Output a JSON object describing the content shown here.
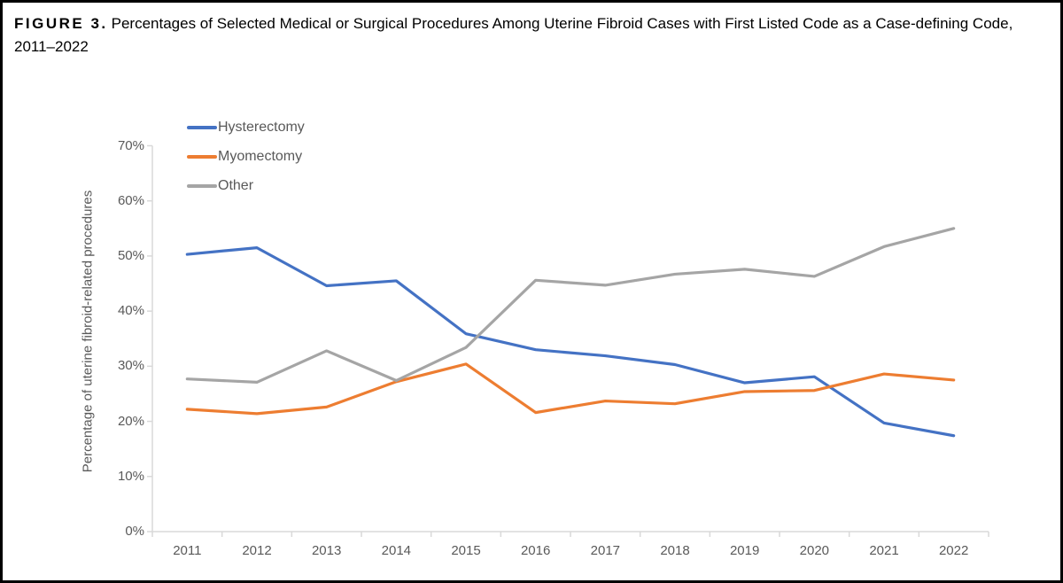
{
  "figure": {
    "label": "FIGURE 3.",
    "title": "Percentages of Selected Medical or Surgical Procedures Among Uterine Fibroid Cases with First Listed Code as a Case-defining Code, 2011–2022"
  },
  "chart_data": {
    "type": "line",
    "categories": [
      "2011",
      "2012",
      "2013",
      "2014",
      "2015",
      "2016",
      "2017",
      "2018",
      "2019",
      "2020",
      "2021",
      "2022"
    ],
    "series": [
      {
        "name": "Hysterectomy",
        "color": "#4472C4",
        "values": [
          50.3,
          51.5,
          44.6,
          45.5,
          35.9,
          33.0,
          31.9,
          30.3,
          27.0,
          28.1,
          19.7,
          17.4
        ]
      },
      {
        "name": "Myomectomy",
        "color": "#ED7D31",
        "values": [
          22.2,
          21.4,
          22.6,
          27.2,
          30.4,
          21.6,
          23.7,
          23.2,
          25.4,
          25.6,
          28.6,
          27.5
        ]
      },
      {
        "name": "Other",
        "color": "#A5A5A5",
        "values": [
          27.7,
          27.1,
          32.8,
          27.4,
          33.4,
          45.6,
          44.7,
          46.7,
          47.6,
          46.3,
          51.7,
          55.0
        ]
      }
    ],
    "xlabel": "",
    "ylabel": "Percentage of uterine fibroid-related procedures",
    "ylim": [
      0,
      70
    ],
    "ytick_labels": [
      "0%",
      "10%",
      "20%",
      "30%",
      "40%",
      "50%",
      "60%",
      "70%"
    ],
    "grid": false,
    "legend_position": "top-left-inside"
  },
  "colors": {
    "axis_line": "#D9D9D9",
    "tick_text": "#595959",
    "title_text": "#000000"
  }
}
